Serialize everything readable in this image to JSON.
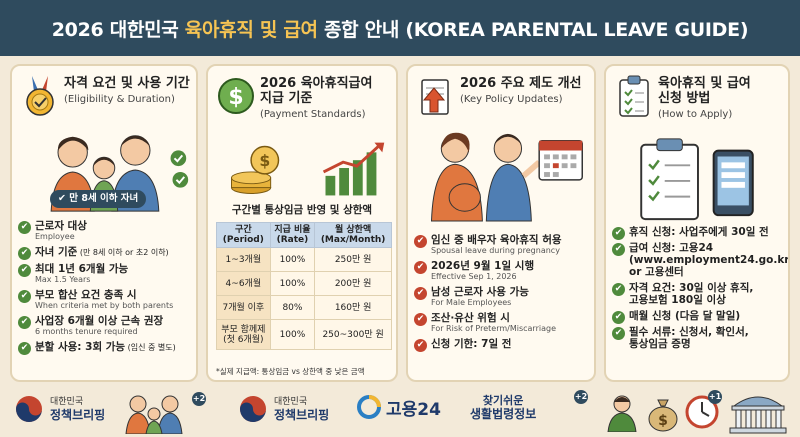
{
  "banner": {
    "title_pre": "2026 대한민국 ",
    "title_highlight": "육아휴직 및 급여",
    "title_post": " 종합 안내 (KOREA PARENTAL LEAVE GUIDE)"
  },
  "colors": {
    "banner_bg": "#2f4b5e",
    "highlight": "#f6c453",
    "check_green": "#4f8a3c",
    "check_red": "#c4452f",
    "card_bg": "#fffaf0"
  },
  "card1": {
    "icon": "medal-icon",
    "title_ko": "자격 요건 및 사용 기간",
    "title_en": "(Eligibility & Duration)",
    "pill": "만 8세 이하 자녀",
    "items": [
      {
        "ko": "근로자 대상",
        "en": "Employee"
      },
      {
        "ko": "자녀 기준",
        "ko_small": " (만 8세 이하 or 초2 이하)",
        "en": ""
      },
      {
        "ko": "최대 1년 6개월 가능",
        "en": "Max 1.5 Years"
      },
      {
        "ko": "부모 합산 요건 충족 시",
        "en": "When criteria met by both parents"
      },
      {
        "ko": "사업장 6개월 이상 근속 권장",
        "en": "6 months tenure required"
      },
      {
        "ko": "분할 사용: 3회 가능",
        "ko_small": " (임신 중 별도)",
        "en": ""
      }
    ]
  },
  "card2": {
    "icon": "dollar-coin-icon",
    "title_ko_1": "2026 육아휴직급여",
    "title_ko_2": "지급 기준",
    "title_en": "(Payment Standards)",
    "table_title": "구간별 통상임금 반영 및 상한액",
    "headers": [
      {
        "ko": "구간",
        "en": "(Period)"
      },
      {
        "ko": "지급 비율",
        "en": "(Rate)"
      },
      {
        "ko": "월 상한액",
        "en": "(Max/Month)"
      }
    ],
    "rows": [
      {
        "period": "1~3개월",
        "period2": "",
        "rate": "100%",
        "max": "250만 원"
      },
      {
        "period": "4~6개월",
        "period2": "",
        "rate": "100%",
        "max": "200만 원"
      },
      {
        "period": "7개월 이후",
        "period2": "",
        "rate": "80%",
        "max": "160만 원"
      },
      {
        "period": "부모 함께제",
        "period2": "(첫 6개월)",
        "rate": "100%",
        "max": "250~300만 원"
      }
    ],
    "note": "*실제 지급액: 통상임금 vs 상한액 중 낮은 금액"
  },
  "card3": {
    "icon": "document-arrow-icon",
    "title_ko": "2026 주요 제도 개선",
    "title_en": "(Key Policy Updates)",
    "items": [
      {
        "ko": "임신 중 배우자 육아휴직 허용",
        "en": "Spousal leave during pregnancy"
      },
      {
        "ko": "2026년 9월 1일 시행",
        "en": "Effective Sep 1, 2026"
      },
      {
        "ko": "남성 근로자 사용 가능",
        "en": "For Male Employees"
      },
      {
        "ko": "조산·유산 위험 시",
        "en": "For Risk of Preterm/Miscarriage"
      },
      {
        "ko": "신청 기한: 7일 전",
        "en": ""
      }
    ]
  },
  "card4": {
    "icon": "clipboard-check-icon",
    "title_ko_1": "육아휴직 및 급여",
    "title_ko_2": "신청 방법",
    "title_en": "(How to Apply)",
    "items": [
      {
        "ko": "휴직 신청: 사업주에게 30일 전"
      },
      {
        "ko": "급여 신청: 고용24",
        "ko2": "(www.employment24.go.kr)",
        "ko3": "or 고용센터"
      },
      {
        "ko": "자격 요건: 30일 이상 휴직,",
        "ko2": "고용보험 180일 이상"
      },
      {
        "ko": "매월 신청 (다음 달 말일)"
      },
      {
        "ko": "필수 서류: 신청서, 확인서,",
        "ko2": "통상임금 증명"
      }
    ]
  },
  "footer": {
    "logo1_line1": "대한민국",
    "logo1_line2": "정책브리핑",
    "badge1": "+2",
    "logo2_line1": "대한민국",
    "logo2_line2": "정책브리핑",
    "logo3": "고용24",
    "logo4_line1": "찾기쉬운",
    "logo4_line2": "생활법령정보",
    "badge4": "+2",
    "badge5": "+1"
  }
}
